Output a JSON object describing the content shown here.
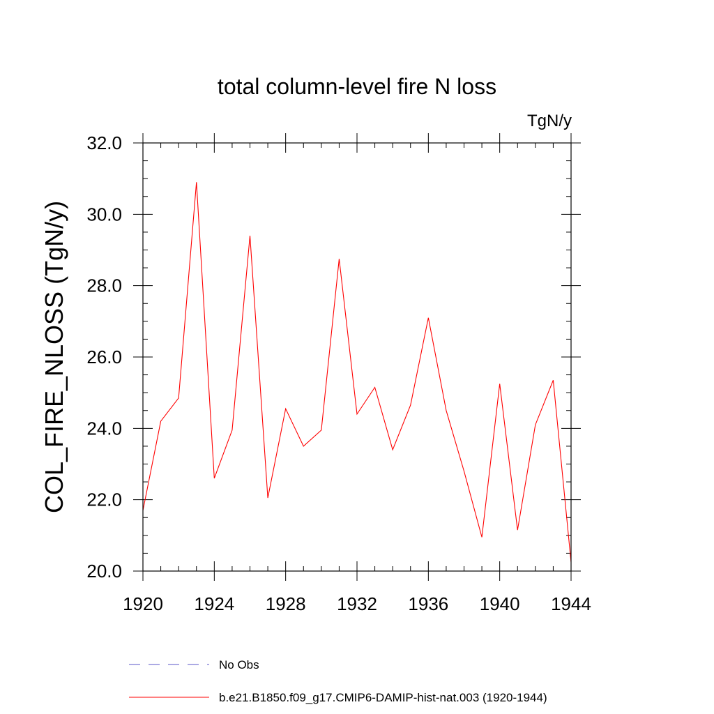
{
  "chart_data": {
    "type": "line",
    "title": "total column-level fire N loss",
    "units": "TgN/y",
    "xlabel": "",
    "ylabel": "COL_FIRE_NLOSS  (TgN/y)",
    "xlim": [
      1920,
      1944
    ],
    "ylim": [
      20,
      32
    ],
    "x_ticks": [
      "1920",
      "1924",
      "1928",
      "1932",
      "1936",
      "1940",
      "1944"
    ],
    "y_ticks": [
      "20.0",
      "22.0",
      "24.0",
      "26.0",
      "28.0",
      "30.0",
      "32.0"
    ],
    "grid": false,
    "legend_position": "bottom",
    "series": [
      {
        "name": "No Obs",
        "style": "dashed",
        "color": "#5a55c8",
        "x": [],
        "values": []
      },
      {
        "name": "b.e21.B1850.f09_g17.CMIP6-DAMIP-hist-nat.003 (1920-1944)",
        "style": "solid",
        "color": "#ff0000",
        "x": [
          1920,
          1921,
          1922,
          1923,
          1924,
          1925,
          1926,
          1927,
          1928,
          1929,
          1930,
          1931,
          1932,
          1933,
          1934,
          1935,
          1936,
          1937,
          1938,
          1939,
          1940,
          1941,
          1942,
          1943,
          1944
        ],
        "values": [
          21.7,
          24.2,
          24.85,
          30.9,
          22.6,
          23.95,
          29.4,
          22.05,
          24.55,
          23.5,
          23.95,
          28.75,
          24.4,
          25.15,
          23.4,
          24.65,
          27.1,
          24.5,
          22.8,
          20.95,
          25.25,
          21.15,
          24.1,
          25.35,
          20.25
        ]
      }
    ]
  }
}
